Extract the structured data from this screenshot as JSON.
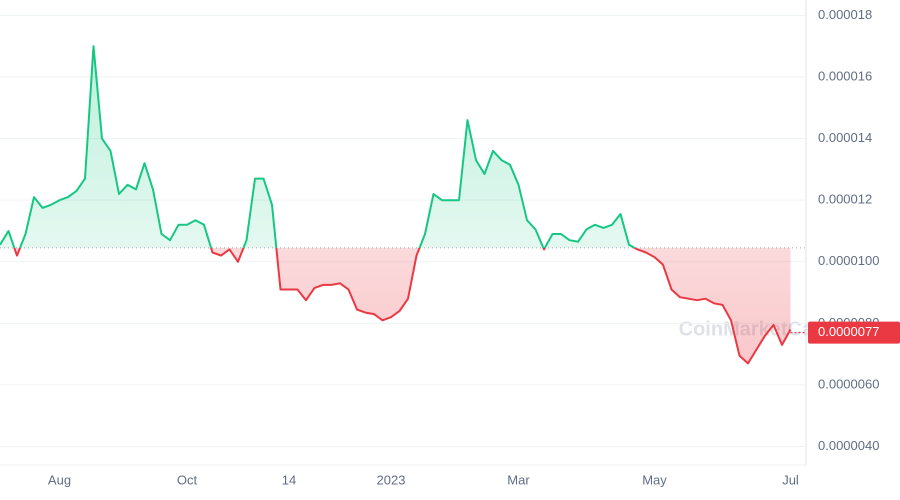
{
  "chart_data": {
    "type": "line",
    "watermark": "CoinMarketCap",
    "categories": [
      null,
      null,
      null,
      null,
      null,
      null,
      null,
      "Aug",
      null,
      null,
      null,
      null,
      null,
      null,
      null,
      null,
      null,
      null,
      null,
      null,
      null,
      null,
      "Oct",
      null,
      null,
      null,
      null,
      null,
      null,
      null,
      null,
      null,
      null,
      null,
      "14",
      null,
      null,
      null,
      null,
      null,
      null,
      null,
      null,
      null,
      null,
      null,
      "2023",
      null,
      null,
      null,
      null,
      null,
      null,
      null,
      null,
      null,
      null,
      null,
      null,
      null,
      null,
      "Mar",
      null,
      null,
      null,
      null,
      null,
      null,
      null,
      null,
      null,
      null,
      null,
      null,
      null,
      null,
      null,
      "May",
      null,
      null,
      null,
      null,
      null,
      null,
      null,
      null,
      null,
      null,
      null,
      null,
      null,
      null,
      null,
      "Jul"
    ],
    "values": [
      1.055e-05,
      1.1e-05,
      1.02e-05,
      1.09e-05,
      1.21e-05,
      1.175e-05,
      1.185e-05,
      1.2e-05,
      1.21e-05,
      1.23e-05,
      1.27e-05,
      1.7e-05,
      1.4e-05,
      1.36e-05,
      1.22e-05,
      1.25e-05,
      1.235e-05,
      1.32e-05,
      1.235e-05,
      1.09e-05,
      1.07e-05,
      1.12e-05,
      1.12e-05,
      1.135e-05,
      1.12e-05,
      1.03e-05,
      1.02e-05,
      1.04e-05,
      1e-05,
      1.07e-05,
      1.27e-05,
      1.27e-05,
      1.185e-05,
      9.1e-06,
      9.1e-06,
      9.1e-06,
      8.75e-06,
      9.15e-06,
      9.25e-06,
      9.25e-06,
      9.3e-06,
      9.1e-06,
      8.45e-06,
      8.35e-06,
      8.3e-06,
      8.1e-06,
      8.2e-06,
      8.4e-06,
      8.8e-06,
      1.02e-05,
      1.09e-05,
      1.22e-05,
      1.2e-05,
      1.2e-05,
      1.2e-05,
      1.46e-05,
      1.33e-05,
      1.285e-05,
      1.36e-05,
      1.33e-05,
      1.315e-05,
      1.25e-05,
      1.135e-05,
      1.105e-05,
      1.04e-05,
      1.09e-05,
      1.09e-05,
      1.07e-05,
      1.065e-05,
      1.105e-05,
      1.12e-05,
      1.11e-05,
      1.12e-05,
      1.155e-05,
      1.055e-05,
      1.04e-05,
      1.03e-05,
      1.015e-05,
      9.9e-06,
      9.1e-06,
      8.85e-06,
      8.8e-06,
      8.75e-06,
      8.8e-06,
      8.65e-06,
      8.6e-06,
      8.1e-06,
      6.95e-06,
      6.7e-06,
      7.15e-06,
      7.6e-06,
      7.95e-06,
      7.3e-06,
      7.8e-06
    ],
    "reference_value": 1.045e-05,
    "color_above": "#16c784",
    "color_below": "#ea3943",
    "ylim": [
      3.4e-06,
      1.85e-05
    ],
    "yticks": [
      {
        "value": 4e-06,
        "label": "0.0000040"
      },
      {
        "value": 6e-06,
        "label": "0.0000060"
      },
      {
        "value": 8e-06,
        "label": "0.0000080"
      },
      {
        "value": 1e-05,
        "label": "0.0000100"
      },
      1.2e-05,
      1.4e-05,
      1.6e-05,
      1.8e-05
    ],
    "grid": true,
    "last_price": {
      "value": 7.7e-06,
      "label": "0.0000077"
    }
  }
}
